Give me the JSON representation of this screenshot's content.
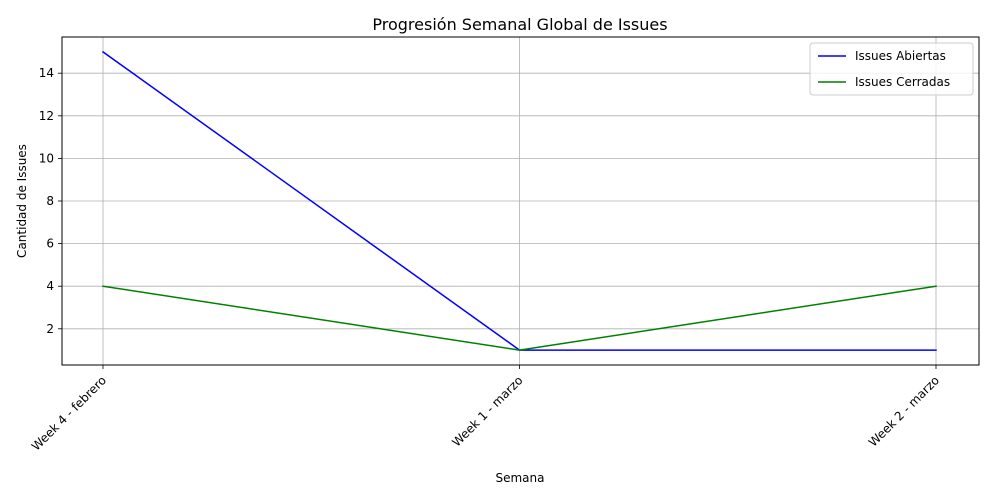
{
  "chart_data": {
    "type": "line",
    "title": "Progresión Semanal Global de Issues",
    "xlabel": "Semana",
    "ylabel": "Cantidad de Issues",
    "categories": [
      "Week 4 - febrero",
      "Week 1 - marzo",
      "Week 2 - marzo"
    ],
    "yticks": [
      2,
      4,
      6,
      8,
      10,
      12,
      14
    ],
    "ylim": [
      0.3,
      15.7
    ],
    "grid": true,
    "legend_position": "top-right",
    "series": [
      {
        "name": "Issues Abiertas",
        "values": [
          15,
          1,
          1
        ],
        "color": "#0000ff"
      },
      {
        "name": "Issues Cerradas",
        "values": [
          4,
          1,
          4
        ],
        "color": "#008000"
      }
    ]
  }
}
